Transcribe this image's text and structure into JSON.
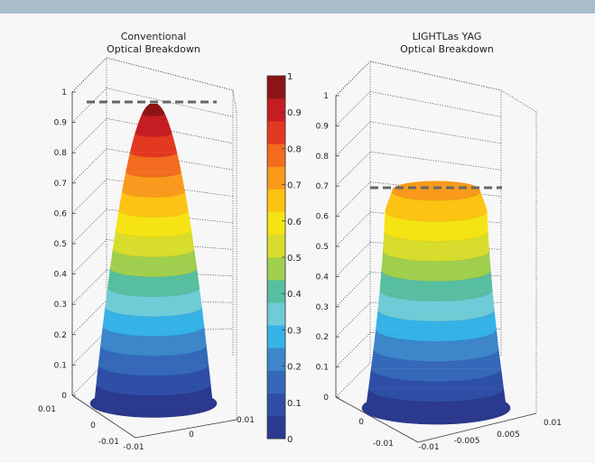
{
  "chart_data": [
    {
      "type": "surface",
      "title": [
        "Conventional",
        "Optical Breakdown"
      ],
      "z_ticks": [
        "0",
        "0.1",
        "0.2",
        "0.3",
        "0.4",
        "0.5",
        "0.6",
        "0.7",
        "0.8",
        "0.9",
        "1"
      ],
      "x_ticks": [
        "-0.01",
        "0",
        "0.01"
      ],
      "y_ticks": [
        "-0.01",
        "0",
        "0.01"
      ],
      "zlim": [
        0,
        1
      ],
      "peak": 0.97,
      "dashed_level": 0.97
    },
    {
      "type": "surface",
      "title": [
        "LIGHTLas YAG",
        "Optical Breakdown"
      ],
      "z_ticks": [
        "0",
        "0.1",
        "0.2",
        "0.3",
        "0.4",
        "0.5",
        "0.6",
        "0.7",
        "0.8",
        "0.9",
        "1"
      ],
      "x_ticks": [
        "-0.01",
        "0",
        "0.01"
      ],
      "y_ticks": [
        "-0.01",
        "-0.005",
        "0",
        "0.005",
        "0.01"
      ],
      "zlim": [
        0,
        1
      ],
      "peak": 0.7,
      "dashed_level": 0.7
    }
  ],
  "colorbar": {
    "ticks": [
      "0",
      "0.1",
      "0.2",
      "0.3",
      "0.4",
      "0.5",
      "0.6",
      "0.7",
      "0.8",
      "0.9",
      "1"
    ],
    "colors": [
      "#2b3a8f",
      "#2f4fa6",
      "#3568b8",
      "#3c86c9",
      "#35b2e6",
      "#6fcbd6",
      "#57bea0",
      "#9fcf4c",
      "#d8dc2c",
      "#f5e313",
      "#fcc313",
      "#f99a1c",
      "#f26b1f",
      "#e2381f",
      "#c51e22",
      "#8c1416"
    ]
  }
}
